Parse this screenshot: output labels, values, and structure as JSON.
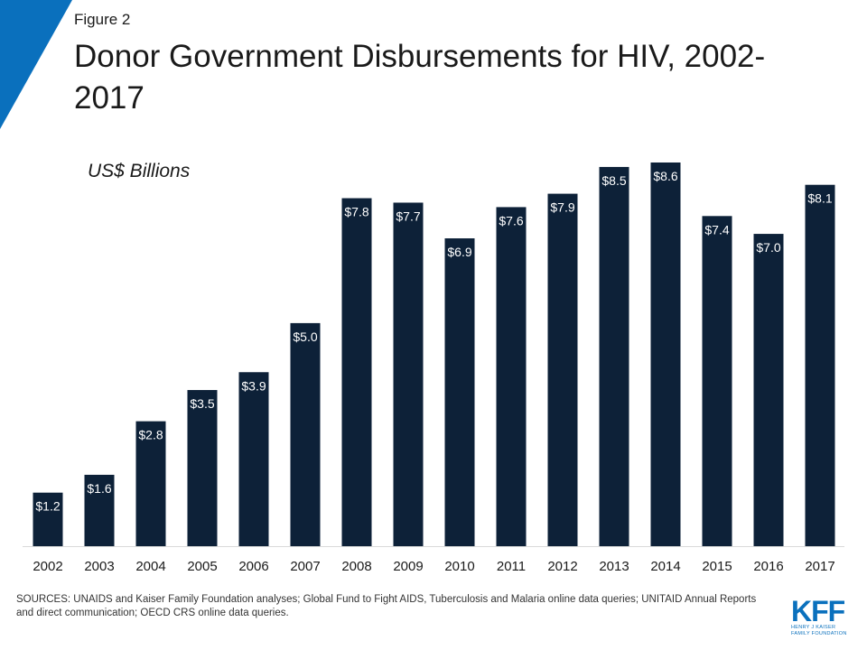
{
  "figure_label": "Figure 2",
  "title": "Donor Government Disbursements for HIV, 2002-2017",
  "units_label": "US$ Billions",
  "sources": "SOURCES: UNAIDS and Kaiser Family Foundation analyses; Global Fund to Fight AIDS, Tuberculosis and Malaria online data queries; UNITAID Annual Reports and direct communication; OECD CRS online data queries.",
  "logo": {
    "main": "KFF",
    "line1": "HENRY J KAISER",
    "line2": "FAMILY FOUNDATION"
  },
  "colors": {
    "bar": "#0d2138",
    "accent": "#0a70bd",
    "label": "#ffffff",
    "axis": "#d9d9d9"
  },
  "chart_data": {
    "type": "bar",
    "title": "Donor Government Disbursements for HIV, 2002-2017",
    "ylabel": "US$ Billions",
    "xlabel": "",
    "categories": [
      "2002",
      "2003",
      "2004",
      "2005",
      "2006",
      "2007",
      "2008",
      "2009",
      "2010",
      "2011",
      "2012",
      "2013",
      "2014",
      "2015",
      "2016",
      "2017"
    ],
    "values": [
      1.2,
      1.6,
      2.8,
      3.5,
      3.9,
      5.0,
      7.8,
      7.7,
      6.9,
      7.6,
      7.9,
      8.5,
      8.6,
      7.4,
      7.0,
      8.1
    ],
    "value_labels": [
      "$1.2",
      "$1.6",
      "$2.8",
      "$3.5",
      "$3.9",
      "$5.0",
      "$7.8",
      "$7.7",
      "$6.9",
      "$7.6",
      "$7.9",
      "$8.5",
      "$8.6",
      "$7.4",
      "$7.0",
      "$8.1"
    ],
    "ylim": [
      0,
      8.6
    ],
    "grid": false,
    "legend": "none"
  }
}
